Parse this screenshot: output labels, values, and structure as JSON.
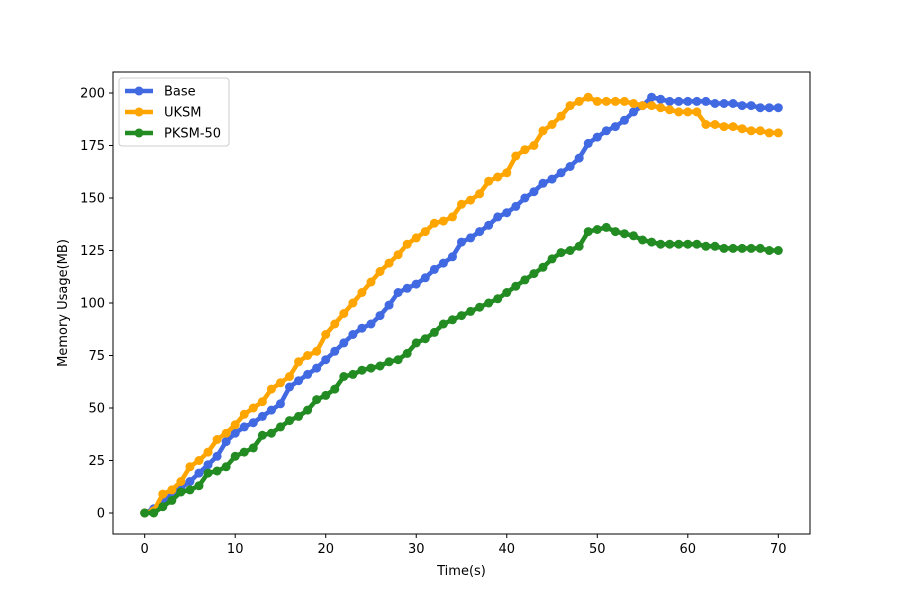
{
  "chart_data": {
    "type": "line",
    "title": "",
    "xlabel": "Time(s)",
    "ylabel": "Memory Usage(MB)",
    "xlim": [
      -3.5,
      73.5
    ],
    "ylim": [
      -10,
      210
    ],
    "xticks": [
      0,
      10,
      20,
      30,
      40,
      50,
      60,
      70
    ],
    "yticks": [
      0,
      25,
      50,
      75,
      100,
      125,
      150,
      175,
      200
    ],
    "grid": false,
    "legend": "top-left",
    "series": [
      {
        "name": "Base",
        "color": "#4169e1",
        "x": [
          0,
          1,
          2,
          3,
          4,
          5,
          6,
          7,
          8,
          9,
          10,
          11,
          12,
          13,
          14,
          15,
          16,
          17,
          18,
          19,
          20,
          21,
          22,
          23,
          24,
          25,
          26,
          27,
          28,
          29,
          30,
          31,
          32,
          33,
          34,
          35,
          36,
          37,
          38,
          39,
          40,
          41,
          42,
          43,
          44,
          45,
          46,
          47,
          48,
          49,
          50,
          51,
          52,
          53,
          54,
          55,
          56,
          57,
          58,
          59,
          60,
          61,
          62,
          63,
          64,
          65,
          66,
          67,
          68,
          69,
          70
        ],
        "y": [
          0,
          2,
          5,
          9,
          12,
          15,
          19,
          23,
          27,
          34,
          38,
          41,
          43,
          46,
          49,
          52,
          60,
          63,
          66,
          69,
          73,
          77,
          81,
          85,
          88,
          90,
          94,
          99,
          105,
          107,
          109,
          112,
          116,
          119,
          122,
          129,
          131,
          134,
          137,
          141,
          143,
          146,
          150,
          153,
          157,
          159,
          162,
          165,
          169,
          176,
          179,
          182,
          184,
          187,
          191,
          194,
          198,
          197,
          196,
          196,
          196,
          196,
          196,
          195,
          195,
          195,
          194,
          194,
          193,
          193,
          193
        ]
      },
      {
        "name": "UKSM",
        "color": "#ffa500",
        "x": [
          0,
          1,
          2,
          3,
          4,
          5,
          6,
          7,
          8,
          9,
          10,
          11,
          12,
          13,
          14,
          15,
          16,
          17,
          18,
          19,
          20,
          21,
          22,
          23,
          24,
          25,
          26,
          27,
          28,
          29,
          30,
          31,
          32,
          33,
          34,
          35,
          36,
          37,
          38,
          39,
          40,
          41,
          42,
          43,
          44,
          45,
          46,
          47,
          48,
          49,
          50,
          51,
          52,
          53,
          54,
          55,
          56,
          57,
          58,
          59,
          60,
          61,
          62,
          63,
          64,
          65,
          66,
          67,
          68,
          69,
          70
        ],
        "y": [
          0,
          1,
          9,
          11,
          15,
          22,
          25,
          29,
          35,
          38,
          42,
          47,
          50,
          53,
          59,
          62,
          65,
          72,
          75,
          77,
          85,
          90,
          95,
          100,
          105,
          110,
          115,
          119,
          123,
          128,
          131,
          134,
          138,
          139,
          141,
          147,
          149,
          152,
          158,
          160,
          162,
          170,
          173,
          175,
          182,
          185,
          189,
          194,
          196,
          198,
          196,
          196,
          196,
          196,
          195,
          194,
          194,
          193,
          192,
          191,
          191,
          191,
          185,
          185,
          184,
          184,
          183,
          182,
          182,
          181,
          181
        ]
      },
      {
        "name": "PKSM-50",
        "color": "#228b22",
        "x": [
          0,
          1,
          2,
          3,
          4,
          5,
          6,
          7,
          8,
          9,
          10,
          11,
          12,
          13,
          14,
          15,
          16,
          17,
          18,
          19,
          20,
          21,
          22,
          23,
          24,
          25,
          26,
          27,
          28,
          29,
          30,
          31,
          32,
          33,
          34,
          35,
          36,
          37,
          38,
          39,
          40,
          41,
          42,
          43,
          44,
          45,
          46,
          47,
          48,
          49,
          50,
          51,
          52,
          53,
          54,
          55,
          56,
          57,
          58,
          59,
          60,
          61,
          62,
          63,
          64,
          65,
          66,
          67,
          68,
          69,
          70
        ],
        "y": [
          0,
          0,
          3,
          6,
          10,
          11,
          13,
          19,
          20,
          22,
          27,
          29,
          31,
          37,
          38,
          41,
          44,
          46,
          49,
          54,
          56,
          59,
          65,
          66,
          68,
          69,
          70,
          72,
          73,
          76,
          81,
          83,
          86,
          90,
          92,
          94,
          96,
          98,
          100,
          102,
          105,
          108,
          111,
          114,
          117,
          121,
          124,
          125,
          127,
          134,
          135,
          136,
          134,
          133,
          132,
          130,
          129,
          128,
          128,
          128,
          128,
          128,
          127,
          127,
          126,
          126,
          126,
          126,
          126,
          125,
          125
        ]
      }
    ]
  }
}
